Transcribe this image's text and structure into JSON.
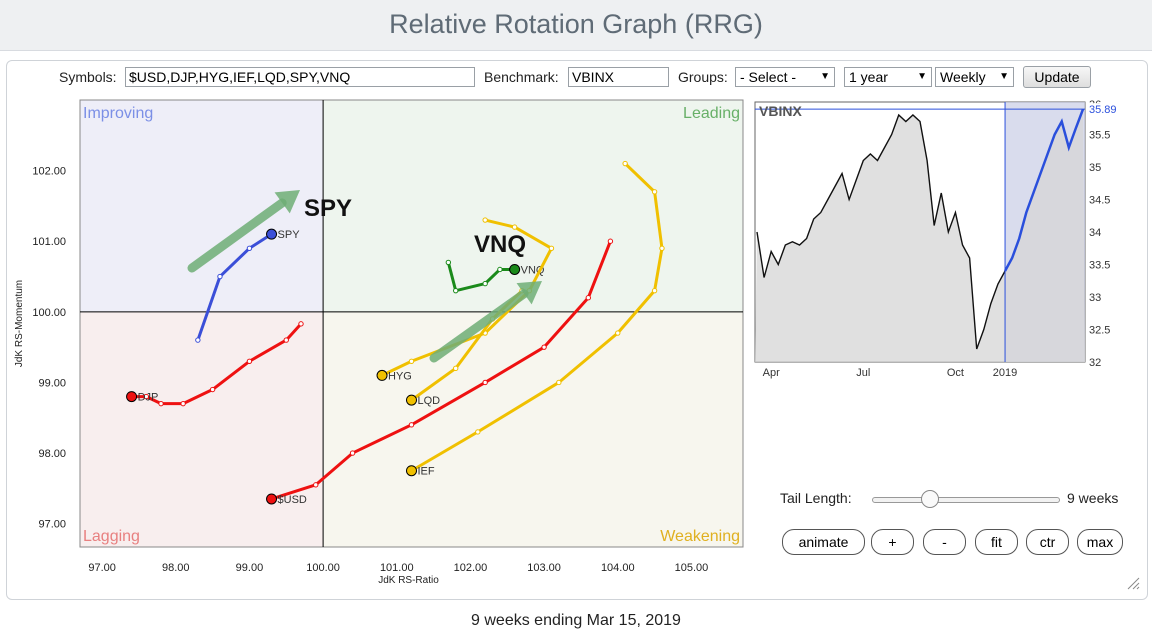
{
  "page": {
    "title": "Relative Rotation Graph (RRG)",
    "footer": "9 weeks ending Mar 15, 2019"
  },
  "controls": {
    "symbols_label": "Symbols:",
    "symbols_value": "$USD,DJP,HYG,IEF,LQD,SPY,VNQ",
    "benchmark_label": "Benchmark:",
    "benchmark_value": "VBINX",
    "groups_label": "Groups:",
    "groups_value": "- Select -",
    "period_value": "1 year",
    "interval_value": "Weekly",
    "update_label": "Update",
    "tail_label": "Tail Length:",
    "tail_value": "9 weeks",
    "tail_fraction": 0.3,
    "buttons": {
      "animate": "animate",
      "plus": "+",
      "minus": "-",
      "fit": "fit",
      "ctr": "ctr",
      "max": "max"
    }
  },
  "quadrants": {
    "improving": {
      "label": "Improving",
      "color": "#7b8fe6",
      "bg": "#eeeef8"
    },
    "leading": {
      "label": "Leading",
      "color": "#68b068",
      "bg": "#eef5ee"
    },
    "weakening": {
      "label": "Weakening",
      "color": "#e0b020",
      "bg": "#f7f6ee"
    },
    "lagging": {
      "label": "Lagging",
      "color": "#e88080",
      "bg": "#f8eeee"
    }
  },
  "annotations": {
    "spy": "SPY",
    "vnq": "VNQ"
  },
  "chart_data": [
    {
      "type": "scatter",
      "title": "",
      "xlabel": "JdK RS-Ratio",
      "ylabel": "JdK RS-Momentum",
      "xlim": [
        96.7,
        105.7
      ],
      "ylim": [
        96.67,
        103.0
      ],
      "xticks": [
        97.0,
        98.0,
        99.0,
        100.0,
        101.0,
        102.0,
        103.0,
        104.0,
        105.0
      ],
      "yticks": [
        97.0,
        98.0,
        99.0,
        100.0,
        101.0,
        102.0
      ],
      "xtick_labels": [
        "97.00",
        "98.00",
        "99.00",
        "100.00",
        "101.00",
        "102.00",
        "103.00",
        "104.00",
        "105.00"
      ],
      "ytick_labels": [
        "97.00",
        "98.00",
        "99.00",
        "100.00",
        "101.00",
        "102.00"
      ],
      "series": [
        {
          "name": "SPY",
          "color": "#3b4fd8",
          "points": [
            [
              98.3,
              99.6
            ],
            [
              98.6,
              100.5
            ],
            [
              99.0,
              100.9
            ],
            [
              99.3,
              101.1
            ]
          ]
        },
        {
          "name": "DJP",
          "color": "#ee1111",
          "points": [
            [
              99.7,
              99.83
            ],
            [
              99.5,
              99.6
            ],
            [
              99.0,
              99.3
            ],
            [
              98.5,
              98.9
            ],
            [
              98.1,
              98.7
            ],
            [
              97.8,
              98.7
            ],
            [
              97.6,
              98.8
            ],
            [
              97.4,
              98.8
            ]
          ]
        },
        {
          "name": "VNQ",
          "color": "#1a8a1a",
          "points": [
            [
              101.7,
              100.7
            ],
            [
              101.8,
              100.3
            ],
            [
              102.2,
              100.4
            ],
            [
              102.4,
              100.6
            ],
            [
              102.6,
              100.6
            ]
          ]
        },
        {
          "name": "HYG",
          "color": "#f0c000",
          "points": [
            [
              102.2,
              101.3
            ],
            [
              102.6,
              101.2
            ],
            [
              103.1,
              100.9
            ],
            [
              102.8,
              100.3
            ],
            [
              102.2,
              99.7
            ],
            [
              101.2,
              99.3
            ],
            [
              100.8,
              99.1
            ]
          ]
        },
        {
          "name": "LQD",
          "color": "#f0c000",
          "points": [
            [
              102.7,
              100.3
            ],
            [
              102.3,
              99.9
            ],
            [
              101.8,
              99.2
            ],
            [
              101.2,
              98.75
            ]
          ]
        },
        {
          "name": "IEF",
          "color": "#f0c000",
          "points": [
            [
              104.1,
              102.1
            ],
            [
              104.5,
              101.7
            ],
            [
              104.6,
              100.9
            ],
            [
              104.5,
              100.3
            ],
            [
              104.0,
              99.7
            ],
            [
              103.2,
              99.0
            ],
            [
              102.1,
              98.3
            ],
            [
              101.2,
              97.75
            ]
          ]
        },
        {
          "name": "$USD",
          "color": "#ee1111",
          "points": [
            [
              103.9,
              101.0
            ],
            [
              103.6,
              100.2
            ],
            [
              103.0,
              99.5
            ],
            [
              102.2,
              99.0
            ],
            [
              101.2,
              98.4
            ],
            [
              100.4,
              98.0
            ],
            [
              99.9,
              97.55
            ],
            [
              99.3,
              97.35
            ]
          ]
        }
      ]
    },
    {
      "type": "line",
      "title": "VBINX",
      "xlabel": "",
      "ylabel": "",
      "ylim": [
        32,
        36
      ],
      "yticks": [
        32,
        32.5,
        33,
        33.5,
        34,
        34.5,
        35,
        35.5,
        36
      ],
      "ytick_labels": [
        "32",
        "32.5",
        "33",
        "33.5",
        "34",
        "34.5",
        "35",
        "35.5",
        "36"
      ],
      "xtick_labels": [
        "Apr",
        "Jul",
        "Oct",
        "2019"
      ],
      "last_value_label": "35.89",
      "series": [
        {
          "name": "VBINX",
          "color": "#111111",
          "values": [
            34.0,
            33.3,
            33.7,
            33.5,
            33.8,
            33.85,
            33.8,
            33.9,
            34.2,
            34.3,
            34.5,
            34.7,
            34.9,
            34.5,
            34.8,
            35.1,
            35.2,
            35.1,
            35.3,
            35.5,
            35.8,
            35.7,
            35.8,
            35.7,
            35.1,
            34.1,
            34.6,
            34.0,
            34.3,
            33.8,
            33.6,
            32.2,
            32.5,
            32.9,
            33.2,
            33.4
          ]
        },
        {
          "name": "recent",
          "color": "#2a4fdc",
          "values": [
            33.4,
            33.6,
            33.9,
            34.3,
            34.6,
            34.9,
            35.2,
            35.5,
            35.7,
            35.3,
            35.6,
            35.89
          ]
        }
      ]
    }
  ]
}
